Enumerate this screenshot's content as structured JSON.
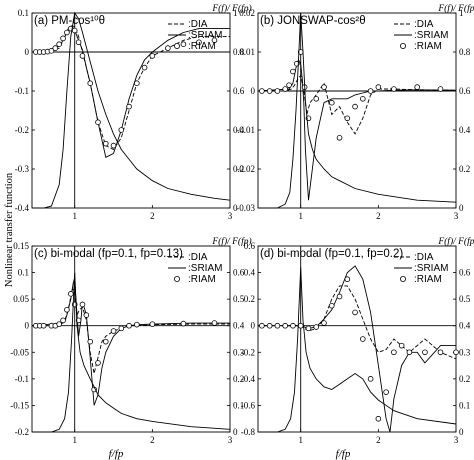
{
  "y_axis_label": "Nonlinear transfer function",
  "x_axis_label": "f/fp",
  "right_axis_label": "F(f)/ F(fp)",
  "chart_data": [
    {
      "type": "line",
      "title": "(a) PM-cos¹⁰θ",
      "xlim": [
        0.45,
        3.0
      ],
      "ylim": [
        -0.4,
        0.1
      ],
      "y2lim": [
        0,
        1
      ],
      "xticks": [
        "1",
        "2",
        "3"
      ],
      "yticks": [
        "-0.4",
        "-0.3",
        "-0.2",
        "-0.1",
        "0",
        "0.1"
      ],
      "y2ticks": [
        "0",
        "0.2",
        "0.4",
        "0.6",
        "0.8",
        "1"
      ],
      "legend": [
        {
          "label": ":DIA",
          "style": "dashed"
        },
        {
          "label": ":SRIAM",
          "style": "solid"
        },
        {
          "label": ":RIAM",
          "style": "circle"
        }
      ],
      "series": [
        {
          "name": ":DIA",
          "style": "dashed",
          "axis": "left",
          "x": [
            0.45,
            0.6,
            0.7,
            0.8,
            0.85,
            0.9,
            0.95,
            1.0,
            1.05,
            1.1,
            1.2,
            1.3,
            1.4,
            1.5,
            1.6,
            1.7,
            1.8,
            1.9,
            2.0,
            2.2,
            2.4,
            2.6,
            2.8,
            3.0
          ],
          "y": [
            0,
            0,
            0.002,
            0.01,
            0.03,
            0.055,
            0.068,
            0.065,
            0.04,
            0,
            -0.08,
            -0.18,
            -0.24,
            -0.25,
            -0.22,
            -0.15,
            -0.08,
            -0.04,
            -0.01,
            0.01,
            0.03,
            0.04,
            0.04,
            0.04
          ]
        },
        {
          "name": ":SRIAM",
          "style": "solid",
          "axis": "left",
          "x": [
            0.45,
            0.6,
            0.7,
            0.8,
            0.85,
            0.9,
            0.95,
            1.0,
            1.05,
            1.1,
            1.15,
            1.2,
            1.3,
            1.4,
            1.5,
            1.6,
            1.7,
            1.8,
            1.9,
            2.0,
            2.2,
            2.4,
            2.6,
            2.8,
            3.0
          ],
          "y": [
            0,
            0,
            0.005,
            0.015,
            0.03,
            0.05,
            0.06,
            0.055,
            0.03,
            0.005,
            -0.04,
            -0.08,
            -0.18,
            -0.27,
            -0.26,
            -0.2,
            -0.12,
            -0.06,
            -0.02,
            0,
            0.03,
            0.05,
            0.06,
            0.06,
            0.06
          ]
        },
        {
          "name": ":RIAM",
          "style": "circle",
          "axis": "left",
          "x": [
            0.5,
            0.55,
            0.6,
            0.65,
            0.7,
            0.75,
            0.8,
            0.85,
            0.9,
            0.95,
            1.0,
            1.05,
            1.1,
            1.2,
            1.3,
            1.4,
            1.5,
            1.6,
            1.7,
            1.8,
            1.9,
            2.0,
            2.2,
            2.4,
            2.6,
            2.8
          ],
          "y": [
            0,
            0,
            0,
            0.001,
            0.003,
            0.01,
            0.02,
            0.035,
            0.05,
            0.06,
            0.055,
            0.025,
            -0.01,
            -0.08,
            -0.18,
            -0.235,
            -0.24,
            -0.2,
            -0.14,
            -0.08,
            -0.04,
            -0.01,
            0.01,
            0.02,
            0.025,
            0.03
          ]
        },
        {
          "name": "F(f)/F(fp)",
          "style": "solid",
          "axis": "right",
          "x": [
            0.45,
            0.6,
            0.7,
            0.8,
            0.85,
            0.9,
            0.95,
            1.0,
            1.05,
            1.1,
            1.2,
            1.3,
            1.4,
            1.5,
            1.6,
            1.8,
            2.0,
            2.2,
            2.5,
            2.8,
            3.0
          ],
          "y": [
            0,
            0,
            0.01,
            0.12,
            0.3,
            0.6,
            0.88,
            1.0,
            0.97,
            0.9,
            0.75,
            0.6,
            0.48,
            0.38,
            0.3,
            0.2,
            0.14,
            0.1,
            0.07,
            0.05,
            0.04
          ]
        }
      ]
    },
    {
      "type": "line",
      "title": "(b) JONSWAP-cos²θ",
      "xlim": [
        0.45,
        3.0
      ],
      "ylim": [
        -0.03,
        0.02
      ],
      "y2lim": [
        0,
        1
      ],
      "xticks": [
        "1",
        "2",
        "3"
      ],
      "yticks": [
        "-0.03",
        "-0.02",
        "-0.01",
        "0",
        "0.01",
        "0.02"
      ],
      "y2ticks": [
        "0",
        "0.2",
        "0.4",
        "0.6",
        "0.8",
        "1"
      ],
      "legend": [
        {
          "label": ":DIA",
          "style": "dashed"
        },
        {
          "label": ":SRIAM",
          "style": "solid"
        },
        {
          "label": ":RIAM",
          "style": "circle"
        }
      ],
      "series": [
        {
          "name": ":DIA",
          "style": "dashed",
          "axis": "left",
          "x": [
            0.45,
            0.8,
            0.88,
            0.92,
            0.96,
            1.0,
            1.04,
            1.08,
            1.12,
            1.2,
            1.3,
            1.4,
            1.5,
            1.6,
            1.7,
            1.8,
            1.9,
            2.0,
            2.2,
            2.5,
            3.0
          ],
          "y": [
            0,
            0,
            0.0005,
            0.0015,
            0.003,
            0.004,
            0,
            -0.006,
            -0.003,
            -0.001,
            0.002,
            -0.006,
            -0.004,
            -0.008,
            -0.011,
            -0.007,
            -0.001,
            0.0005,
            0.0005,
            0.0003,
            0.0002
          ]
        },
        {
          "name": ":SRIAM",
          "style": "solid",
          "axis": "left",
          "x": [
            0.45,
            0.85,
            0.9,
            0.94,
            0.97,
            1.0,
            1.02,
            1.04,
            1.06,
            1.1,
            1.2,
            1.3,
            1.4,
            1.5,
            1.6,
            1.7,
            1.8,
            1.9,
            2.0,
            2.2,
            2.5,
            3.0
          ],
          "y": [
            0,
            0.0005,
            0.002,
            0.006,
            0.008,
            0.007,
            0.003,
            -0.003,
            -0.015,
            -0.028,
            -0.012,
            -0.003,
            -0.002,
            -0.002,
            -0.002,
            -0.001,
            -0.0005,
            0,
            0,
            0.0002,
            0.0003,
            0.0002
          ]
        },
        {
          "name": ":RIAM",
          "style": "circle",
          "axis": "left",
          "x": [
            0.5,
            0.6,
            0.7,
            0.8,
            0.85,
            0.9,
            0.95,
            1.0,
            1.05,
            1.1,
            1.2,
            1.3,
            1.4,
            1.5,
            1.6,
            1.7,
            1.8,
            1.9,
            2.0,
            2.2,
            2.5,
            2.8
          ],
          "y": [
            0,
            0,
            0,
            0.0005,
            0.0015,
            0.005,
            0.007,
            0.01,
            0.001,
            -0.007,
            -0.002,
            0.001,
            -0.003,
            -0.012,
            -0.007,
            -0.004,
            -0.002,
            0,
            0.001,
            0.0005,
            0.001,
            0.0005
          ]
        },
        {
          "name": "F(f)/F(fp)",
          "style": "solid",
          "axis": "right",
          "x": [
            0.45,
            0.7,
            0.8,
            0.86,
            0.9,
            0.94,
            0.97,
            1.0,
            1.03,
            1.06,
            1.1,
            1.15,
            1.2,
            1.3,
            1.4,
            1.5,
            1.7,
            2.0,
            2.5,
            3.0
          ],
          "y": [
            0,
            0,
            0.02,
            0.08,
            0.25,
            0.5,
            0.75,
            1.0,
            0.8,
            0.55,
            0.38,
            0.3,
            0.25,
            0.2,
            0.16,
            0.14,
            0.1,
            0.07,
            0.04,
            0.03
          ]
        }
      ]
    },
    {
      "type": "line",
      "title": "(c) bi-modal (fp=0.1, fp=0.13)",
      "xlim": [
        0.45,
        3.0
      ],
      "ylim": [
        -0.2,
        0.15
      ],
      "y2lim": [
        0,
        0.7
      ],
      "xticks": [
        "1",
        "2",
        "3"
      ],
      "yticks": [
        "-0.2",
        "-0.15",
        "-0.1",
        "-0.05",
        "0",
        "0.05",
        "0.1",
        "0.15"
      ],
      "y2ticks": [
        "0",
        "0.1",
        "0.2",
        "0.3",
        "0.4",
        "0.5",
        "0.6"
      ],
      "legend": [
        {
          "label": ":DIA",
          "style": "dashed"
        },
        {
          "label": ":SRIAM",
          "style": "solid"
        },
        {
          "label": ":RIAM",
          "style": "circle"
        }
      ],
      "series": [
        {
          "name": ":DIA",
          "style": "dashed",
          "axis": "left",
          "x": [
            0.45,
            0.8,
            0.88,
            0.93,
            0.97,
            1.0,
            1.03,
            1.06,
            1.1,
            1.15,
            1.2,
            1.25,
            1.3,
            1.35,
            1.4,
            1.5,
            1.6,
            1.7,
            1.8,
            2.0,
            2.5,
            3.0
          ],
          "y": [
            0,
            0,
            0.01,
            0.04,
            0.07,
            0.06,
            0.02,
            0.03,
            0.035,
            0.01,
            -0.05,
            -0.09,
            -0.06,
            -0.03,
            -0.02,
            -0.01,
            -0.005,
            0,
            0,
            0.002,
            0.003,
            0.003
          ]
        },
        {
          "name": ":SRIAM",
          "style": "solid",
          "axis": "left",
          "x": [
            0.45,
            0.85,
            0.9,
            0.95,
            0.98,
            1.0,
            1.02,
            1.05,
            1.08,
            1.1,
            1.15,
            1.2,
            1.25,
            1.3,
            1.35,
            1.4,
            1.5,
            1.6,
            1.7,
            1.8,
            2.0,
            2.5,
            3.0
          ],
          "y": [
            0,
            0.005,
            0.02,
            0.05,
            0.08,
            0.09,
            0.04,
            -0.02,
            0.01,
            0.045,
            0.02,
            -0.06,
            -0.15,
            -0.13,
            -0.08,
            -0.05,
            -0.02,
            -0.005,
            0,
            0.002,
            0.003,
            0.005,
            0.005
          ]
        },
        {
          "name": ":RIAM",
          "style": "circle",
          "axis": "left",
          "x": [
            0.5,
            0.55,
            0.6,
            0.7,
            0.75,
            0.8,
            0.85,
            0.9,
            0.95,
            1.0,
            1.05,
            1.1,
            1.15,
            1.2,
            1.25,
            1.3,
            1.4,
            1.5,
            1.6,
            1.7,
            1.8,
            2.0,
            2.4,
            2.8
          ],
          "y": [
            0,
            0,
            0,
            0,
            0,
            0.003,
            0.01,
            0.03,
            0.06,
            0.04,
            0.01,
            0.04,
            0.02,
            -0.03,
            -0.12,
            -0.07,
            -0.03,
            -0.01,
            -0.005,
            0,
            0.002,
            0.003,
            0.004,
            0.005
          ]
        },
        {
          "name": "F(f)/F(fp)",
          "style": "solid",
          "axis": "right",
          "x": [
            0.45,
            0.7,
            0.8,
            0.87,
            0.92,
            0.96,
            1.0,
            1.03,
            1.07,
            1.12,
            1.2,
            1.3,
            1.4,
            1.5,
            1.6,
            1.8,
            2.0,
            2.5,
            3.0
          ],
          "y": [
            0,
            0,
            0.01,
            0.05,
            0.15,
            0.35,
            0.6,
            0.4,
            0.3,
            0.25,
            0.2,
            0.14,
            0.11,
            0.09,
            0.07,
            0.05,
            0.04,
            0.02,
            0.01
          ]
        }
      ]
    },
    {
      "type": "line",
      "title": "(d) bi-modal (fp=0.1, fp=0.2)",
      "xlim": [
        0.45,
        3.0
      ],
      "ylim": [
        -0.8,
        0.6
      ],
      "y2lim": [
        0,
        0.7
      ],
      "xticks": [
        "1",
        "2",
        "3"
      ],
      "yticks": [
        "-0.8",
        "-0.6",
        "-0.4",
        "-0.2",
        "0",
        "0.2",
        "0.4",
        "0.6"
      ],
      "y2ticks": [
        "0",
        "0.1",
        "0.2",
        "0.3",
        "0.4",
        "0.5",
        "0.6"
      ],
      "legend": [
        {
          "label": ":DIA",
          "style": "dashed"
        },
        {
          "label": ":SRIAM",
          "style": "solid"
        },
        {
          "label": ":RIAM",
          "style": "circle"
        }
      ],
      "series": [
        {
          "name": ":DIA",
          "style": "dashed",
          "axis": "left",
          "x": [
            0.45,
            0.9,
            1.0,
            1.05,
            1.1,
            1.2,
            1.3,
            1.4,
            1.5,
            1.6,
            1.7,
            1.8,
            1.9,
            2.0,
            2.1,
            2.2,
            2.4,
            2.6,
            2.8,
            3.0
          ],
          "y": [
            0,
            0,
            0,
            -0.02,
            -0.04,
            -0.02,
            0.05,
            0.2,
            0.3,
            0.3,
            0.2,
            0.05,
            -0.1,
            -0.2,
            -0.18,
            -0.1,
            -0.2,
            -0.1,
            -0.2,
            -0.25
          ]
        },
        {
          "name": ":SRIAM",
          "style": "solid",
          "axis": "left",
          "x": [
            0.45,
            0.9,
            1.0,
            1.1,
            1.2,
            1.3,
            1.4,
            1.5,
            1.6,
            1.7,
            1.8,
            1.9,
            2.0,
            2.1,
            2.15,
            2.2,
            2.3,
            2.4,
            2.5,
            2.6,
            2.8,
            3.0
          ],
          "y": [
            0,
            0,
            0,
            -0.02,
            -0.01,
            0.05,
            0.12,
            0.25,
            0.4,
            0.45,
            0.35,
            0.1,
            -0.3,
            -0.7,
            -0.8,
            -0.55,
            -0.3,
            -0.2,
            -0.2,
            -0.28,
            -0.15,
            -0.15
          ]
        },
        {
          "name": ":RIAM",
          "style": "circle",
          "axis": "left",
          "x": [
            0.5,
            0.6,
            0.7,
            0.8,
            0.9,
            1.0,
            1.1,
            1.2,
            1.3,
            1.4,
            1.5,
            1.6,
            1.7,
            1.8,
            1.9,
            2.0,
            2.1,
            2.2,
            2.3,
            2.4,
            2.6,
            2.8,
            3.0
          ],
          "y": [
            0,
            0,
            0,
            0,
            0,
            0,
            -0.02,
            -0.01,
            0.02,
            0.15,
            0.22,
            0.35,
            0.1,
            -0.1,
            -0.4,
            -0.7,
            -0.5,
            -0.2,
            -0.15,
            -0.2,
            -0.2,
            -0.2,
            -0.2
          ]
        },
        {
          "name": "F(f)/F(fp)",
          "style": "solid",
          "axis": "right",
          "x": [
            0.45,
            0.7,
            0.8,
            0.87,
            0.92,
            0.96,
            1.0,
            1.03,
            1.07,
            1.12,
            1.2,
            1.3,
            1.4,
            1.5,
            1.6,
            1.7,
            1.8,
            1.9,
            2.0,
            2.2,
            2.5,
            3.0
          ],
          "y": [
            0,
            0,
            0.01,
            0.05,
            0.15,
            0.35,
            0.62,
            0.42,
            0.3,
            0.24,
            0.2,
            0.17,
            0.16,
            0.18,
            0.2,
            0.22,
            0.2,
            0.15,
            0.12,
            0.08,
            0.05,
            0.03
          ]
        }
      ]
    }
  ]
}
